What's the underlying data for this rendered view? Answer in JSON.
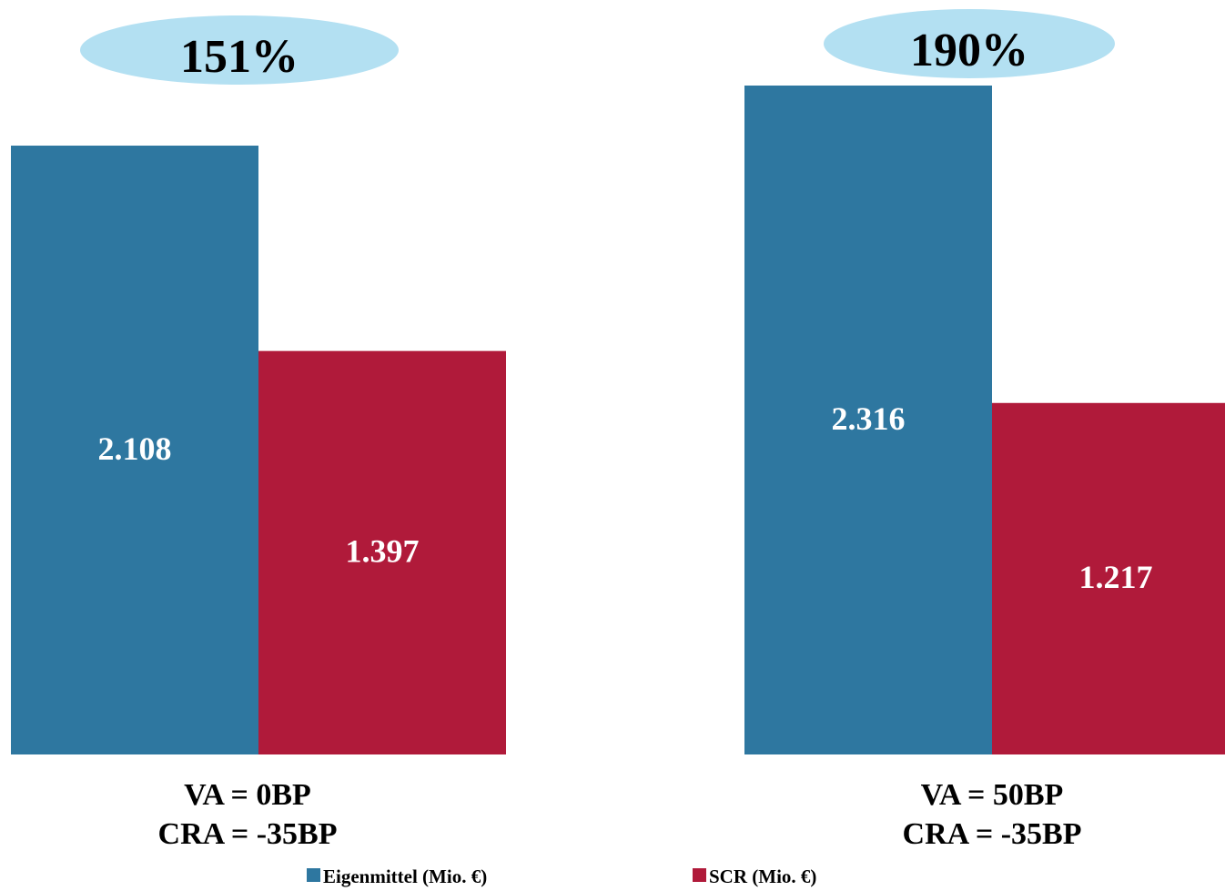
{
  "chart_data": {
    "type": "bar",
    "categories": [
      [
        "VA = 0BP",
        "CRA = -35BP"
      ],
      [
        "VA = 50BP",
        "CRA = -35BP"
      ]
    ],
    "series": [
      {
        "name": "Eigenmittel (Mio. €)",
        "color": "#2e77a0",
        "values": [
          2108,
          2316
        ],
        "value_labels": [
          "2.108",
          "2.316"
        ]
      },
      {
        "name": "SCR (Mio. €)",
        "color": "#b01a3a",
        "values": [
          1397,
          1217
        ],
        "value_labels": [
          "1.397",
          "1.217"
        ]
      }
    ],
    "annotations": [
      "151%",
      "190%"
    ],
    "legend": "bottom"
  }
}
